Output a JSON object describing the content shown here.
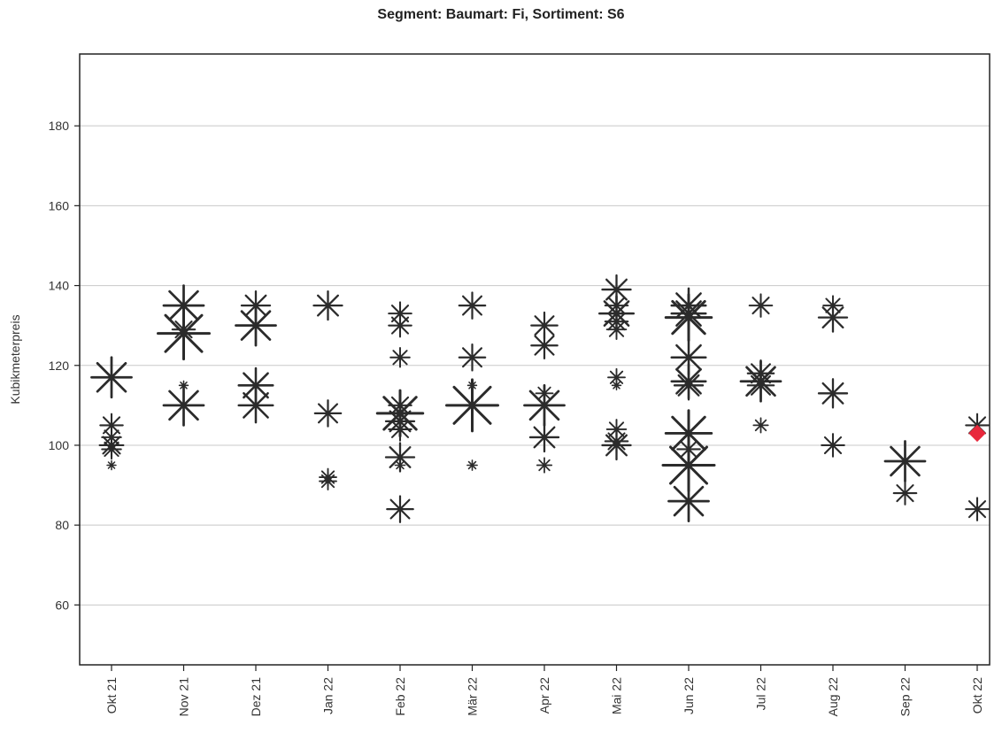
{
  "chart_data": {
    "type": "scatter",
    "title": "Segment: Baumart: Fi, Sortiment: S6",
    "xlabel": "",
    "ylabel": "Kubikmeterpreis",
    "ylim": [
      45,
      198
    ],
    "y_ticks": [
      60,
      80,
      100,
      120,
      140,
      160,
      180
    ],
    "grid": "horizontal",
    "categories": [
      "Okt 21",
      "Nov 21",
      "Dez 21",
      "Jan 22",
      "Feb 22",
      "Mär 22",
      "Apr 22",
      "Mai 22",
      "Jun 22",
      "Jul 22",
      "Aug 22",
      "Sep 22",
      "Okt 22"
    ],
    "marker": "star (asterisk), size proportional to volume",
    "series": [
      {
        "points": [
          {
            "x": "Okt 21",
            "y": 117,
            "size": 3.0
          },
          {
            "x": "Okt 21",
            "y": 105,
            "size": 1.5
          },
          {
            "x": "Okt 21",
            "y": 102,
            "size": 1.2
          },
          {
            "x": "Okt 21",
            "y": 100,
            "size": 1.6
          },
          {
            "x": "Okt 21",
            "y": 99,
            "size": 1.2
          },
          {
            "x": "Okt 21",
            "y": 95,
            "size": 0.3
          },
          {
            "x": "Nov 21",
            "y": 135,
            "size": 3.0
          },
          {
            "x": "Nov 21",
            "y": 129,
            "size": 1.5
          },
          {
            "x": "Nov 21",
            "y": 128,
            "size": 4.0
          },
          {
            "x": "Nov 21",
            "y": 115,
            "size": 0.3
          },
          {
            "x": "Nov 21",
            "y": 110,
            "size": 3.0
          },
          {
            "x": "Dez 21",
            "y": 135,
            "size": 2.0
          },
          {
            "x": "Dez 21",
            "y": 130,
            "size": 3.0
          },
          {
            "x": "Dez 21",
            "y": 115,
            "size": 2.5
          },
          {
            "x": "Dez 21",
            "y": 110,
            "size": 2.5
          },
          {
            "x": "Jan 22",
            "y": 135,
            "size": 2.0
          },
          {
            "x": "Jan 22",
            "y": 108,
            "size": 1.8
          },
          {
            "x": "Jan 22",
            "y": 92,
            "size": 1.0
          },
          {
            "x": "Jan 22",
            "y": 91,
            "size": 1.0
          },
          {
            "x": "Feb 22",
            "y": 133,
            "size": 1.5
          },
          {
            "x": "Feb 22",
            "y": 130,
            "size": 1.5
          },
          {
            "x": "Feb 22",
            "y": 122,
            "size": 1.2
          },
          {
            "x": "Feb 22",
            "y": 110,
            "size": 1.5
          },
          {
            "x": "Feb 22",
            "y": 108,
            "size": 3.5
          },
          {
            "x": "Feb 22",
            "y": 106,
            "size": 2.0
          },
          {
            "x": "Feb 22",
            "y": 104,
            "size": 1.5
          },
          {
            "x": "Feb 22",
            "y": 97,
            "size": 2.0
          },
          {
            "x": "Feb 22",
            "y": 95,
            "size": 0.4
          },
          {
            "x": "Feb 22",
            "y": 84,
            "size": 1.8
          },
          {
            "x": "Mär 22",
            "y": 135,
            "size": 1.8
          },
          {
            "x": "Mär 22",
            "y": 122,
            "size": 1.8
          },
          {
            "x": "Mär 22",
            "y": 115,
            "size": 0.3
          },
          {
            "x": "Mär 22",
            "y": 110,
            "size": 4.0
          },
          {
            "x": "Mär 22",
            "y": 95,
            "size": 0.4
          },
          {
            "x": "Apr 22",
            "y": 130,
            "size": 1.8
          },
          {
            "x": "Apr 22",
            "y": 125,
            "size": 1.8
          },
          {
            "x": "Apr 22",
            "y": 113,
            "size": 1.0
          },
          {
            "x": "Apr 22",
            "y": 110,
            "size": 3.0
          },
          {
            "x": "Apr 22",
            "y": 102,
            "size": 2.0
          },
          {
            "x": "Apr 22",
            "y": 95,
            "size": 0.8
          },
          {
            "x": "Mai 22",
            "y": 139,
            "size": 2.0
          },
          {
            "x": "Mai 22",
            "y": 135,
            "size": 1.5
          },
          {
            "x": "Mai 22",
            "y": 133,
            "size": 2.5
          },
          {
            "x": "Mai 22",
            "y": 131,
            "size": 1.5
          },
          {
            "x": "Mai 22",
            "y": 129,
            "size": 1.2
          },
          {
            "x": "Mai 22",
            "y": 117,
            "size": 1.0
          },
          {
            "x": "Mai 22",
            "y": 115,
            "size": 0.3
          },
          {
            "x": "Mai 22",
            "y": 104,
            "size": 1.2
          },
          {
            "x": "Mai 22",
            "y": 101,
            "size": 1.5
          },
          {
            "x": "Mai 22",
            "y": 100,
            "size": 2.0
          },
          {
            "x": "Jun 22",
            "y": 135,
            "size": 2.5
          },
          {
            "x": "Jun 22",
            "y": 133,
            "size": 2.5
          },
          {
            "x": "Jun 22",
            "y": 132,
            "size": 3.5
          },
          {
            "x": "Jun 22",
            "y": 122,
            "size": 2.5
          },
          {
            "x": "Jun 22",
            "y": 116,
            "size": 2.5
          },
          {
            "x": "Jun 22",
            "y": 115,
            "size": 2.0
          },
          {
            "x": "Jun 22",
            "y": 103,
            "size": 3.5
          },
          {
            "x": "Jun 22",
            "y": 99,
            "size": 1.5
          },
          {
            "x": "Jun 22",
            "y": 95,
            "size": 4.0
          },
          {
            "x": "Jun 22",
            "y": 86,
            "size": 3.0
          },
          {
            "x": "Jul 22",
            "y": 135,
            "size": 1.5
          },
          {
            "x": "Jul 22",
            "y": 118,
            "size": 1.8
          },
          {
            "x": "Jul 22",
            "y": 116,
            "size": 3.0
          },
          {
            "x": "Jul 22",
            "y": 115,
            "size": 1.8
          },
          {
            "x": "Jul 22",
            "y": 105,
            "size": 0.8
          },
          {
            "x": "Aug 22",
            "y": 135,
            "size": 1.2
          },
          {
            "x": "Aug 22",
            "y": 132,
            "size": 2.0
          },
          {
            "x": "Aug 22",
            "y": 113,
            "size": 2.0
          },
          {
            "x": "Aug 22",
            "y": 100,
            "size": 1.5
          },
          {
            "x": "Sep 22",
            "y": 96,
            "size": 3.0
          },
          {
            "x": "Sep 22",
            "y": 88,
            "size": 1.5
          },
          {
            "x": "Okt 22",
            "y": 105,
            "size": 1.5
          },
          {
            "x": "Okt 22",
            "y": 84,
            "size": 1.5
          }
        ]
      }
    ],
    "highlight": {
      "x": "Okt 22",
      "y": 103,
      "color": "#e8283c",
      "shape": "diamond"
    },
    "colors": {
      "marker": "#2b2b2b",
      "grid": "#c8c8c8",
      "axis": "#222222"
    }
  }
}
